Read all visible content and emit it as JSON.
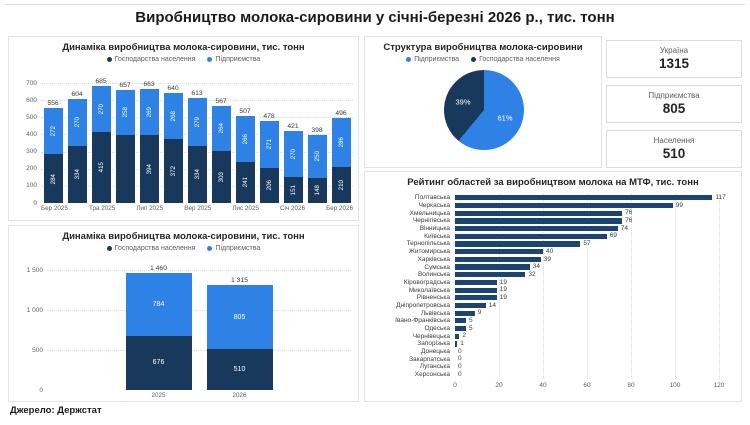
{
  "page": {
    "title": "Виробництво молока-сировини у січні-березні 2026 р., тис. тонн",
    "source": "Джерело: Держстат"
  },
  "colors": {
    "enterprises": "#2E82E6",
    "population": "#18395C",
    "ranking_bar": "#1C4470"
  },
  "cards": [
    {
      "label": "Україна",
      "value": "1315"
    },
    {
      "label": "Підприємства",
      "value": "805"
    },
    {
      "label": "Населення",
      "value": "510"
    }
  ],
  "chart_data": [
    {
      "id": "monthly_dynamics",
      "type": "bar",
      "stacked": true,
      "title": "Динаміка виробництва молока-сировини, тис. тонн",
      "legend_position": "top",
      "x_tick_labels": [
        "Бер 2025",
        "",
        "Тра 2025",
        "",
        "Лип 2025",
        "",
        "Вер 2025",
        "",
        "Лис 2025",
        "",
        "Січ 2026",
        "",
        "Бер 2026"
      ],
      "totals": [
        556,
        604,
        685,
        657,
        663,
        640,
        613,
        567,
        507,
        478,
        421,
        398,
        496
      ],
      "series": [
        {
          "name": "Господарства населення",
          "color": "#18395C",
          "values": [
            284,
            334,
            415,
            399,
            394,
            372,
            334,
            303,
            241,
            206,
            151,
            148,
            210
          ],
          "value_labels": [
            "284",
            "334",
            "415",
            "",
            "394",
            "372",
            "334",
            "303",
            "241",
            "206",
            "151",
            "148",
            "210"
          ]
        },
        {
          "name": "Підприємства",
          "color": "#2E82E6",
          "values": [
            272,
            270,
            270,
            258,
            269,
            268,
            279,
            264,
            266,
            271,
            270,
            250,
            286
          ],
          "value_labels": [
            "272",
            "270",
            "270",
            "258",
            "269",
            "268",
            "279",
            "264",
            "266",
            "271",
            "270",
            "250",
            "286"
          ]
        }
      ],
      "ylim": [
        0,
        700
      ],
      "y_ticks": [
        "0",
        "100",
        "200",
        "300",
        "400",
        "500",
        "600",
        "700"
      ],
      "grid": "dotted-horizontal"
    },
    {
      "id": "structure_pie",
      "type": "pie",
      "title": "Структура виробництва молока-сировини",
      "legend_position": "top",
      "slices": [
        {
          "name": "Підприємства",
          "label": "61%",
          "value": 61,
          "color": "#2E82E6"
        },
        {
          "name": "Господарства населення",
          "label": "39%",
          "value": 39,
          "color": "#18395C"
        }
      ]
    },
    {
      "id": "yearly_dynamics",
      "type": "bar",
      "stacked": true,
      "title": "Динаміка виробництва молока-сировини, тис. тонн",
      "legend_position": "top",
      "categories": [
        "2025",
        "2026"
      ],
      "totals": [
        1460,
        1315
      ],
      "total_labels": [
        "1 460",
        "1 315"
      ],
      "series": [
        {
          "name": "Господарства населення",
          "color": "#18395C",
          "values": [
            676,
            510
          ],
          "value_labels": [
            "676",
            "510"
          ]
        },
        {
          "name": "Підприємства",
          "color": "#2E82E6",
          "values": [
            784,
            805
          ],
          "value_labels": [
            "784",
            "805"
          ]
        }
      ],
      "ylim": [
        0,
        1500
      ],
      "y_ticks": [
        "0",
        "500",
        "1 000",
        "1 500"
      ],
      "grid": "dotted-horizontal"
    },
    {
      "id": "region_ranking",
      "type": "bar",
      "orientation": "horizontal",
      "title": "Рейтинг областей за виробництвом молока на МТФ, тис. тонн",
      "categories": [
        "Полтавська",
        "Черкаська",
        "Хмельницька",
        "Чернігівська",
        "Вінницька",
        "Київська",
        "Тернопільська",
        "Житомирська",
        "Харківська",
        "Сумська",
        "Волинська",
        "Кіровоградська",
        "Миколаївська",
        "Рівненська",
        "Дніпропетровська",
        "Львівська",
        "Івано-Франківська",
        "Одеська",
        "Чернівецька",
        "Запорізька",
        "Донецька",
        "Закарпатська",
        "Луганська",
        "Херсонська"
      ],
      "values": [
        117,
        99,
        76,
        76,
        74,
        69,
        57,
        40,
        39,
        34,
        32,
        19,
        19,
        19,
        14,
        9,
        5,
        5,
        2,
        1,
        0,
        0,
        0,
        0
      ],
      "xlim": [
        0,
        120
      ],
      "x_ticks": [
        "0",
        "20",
        "40",
        "60",
        "80",
        "100",
        "120"
      ],
      "bar_color": "#1C4470",
      "grid": "dotted-vertical"
    }
  ]
}
